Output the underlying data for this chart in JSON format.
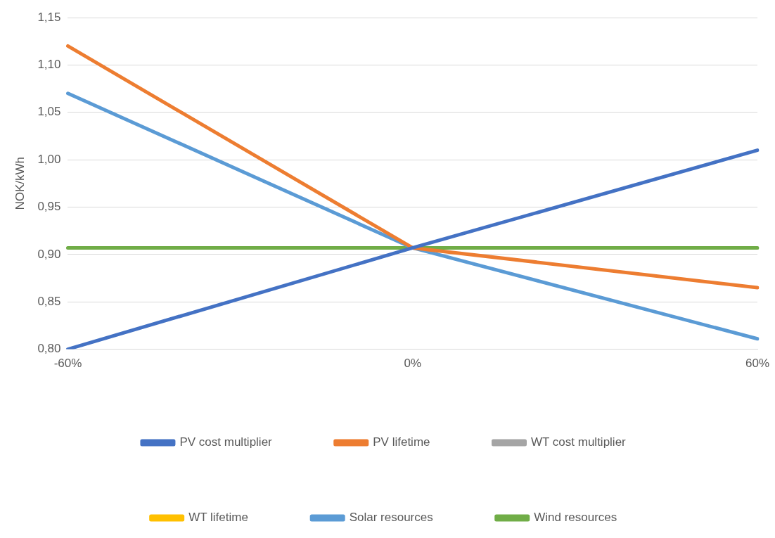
{
  "chart_data": {
    "type": "line",
    "ylabel": "NOK/kWh",
    "categories": [
      "-60%",
      "0%",
      "60%"
    ],
    "series": [
      {
        "name": "PV cost multiplier",
        "color": "#4472c4",
        "values": [
          0.8,
          0.907,
          1.01
        ]
      },
      {
        "name": "PV lifetime",
        "color": "#ed7d31",
        "values": [
          1.12,
          0.907,
          0.865
        ]
      },
      {
        "name": "WT cost multiplier",
        "color": "#a5a5a5",
        "values": [
          null,
          null,
          null
        ]
      },
      {
        "name": "WT lifetime",
        "color": "#ffc000",
        "values": [
          null,
          null,
          null
        ]
      },
      {
        "name": "Solar resources",
        "color": "#5b9bd5",
        "values": [
          1.07,
          0.907,
          0.811
        ]
      },
      {
        "name": "Wind resources",
        "color": "#70ad47",
        "values": [
          0.907,
          0.907,
          0.907
        ]
      }
    ],
    "ylim": [
      0.8,
      1.15
    ],
    "yticks": [
      {
        "value": 0.8,
        "label": "0,80"
      },
      {
        "value": 0.85,
        "label": "0,85"
      },
      {
        "value": 0.9,
        "label": "0,90"
      },
      {
        "value": 0.95,
        "label": "0,95"
      },
      {
        "value": 1.0,
        "label": "1,00"
      },
      {
        "value": 1.05,
        "label": "1,05"
      },
      {
        "value": 1.1,
        "label": "1,10"
      },
      {
        "value": 1.15,
        "label": "1,15"
      }
    ],
    "grid": "y",
    "legend": "bottom",
    "marker": "none",
    "line_style": "solid"
  }
}
